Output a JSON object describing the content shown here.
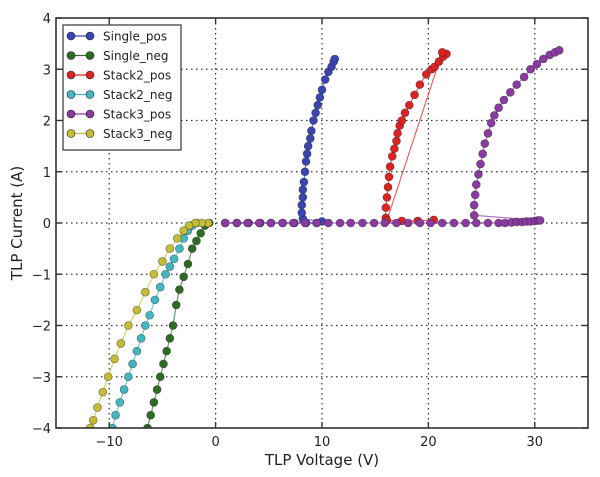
{
  "chart_data": {
    "type": "line",
    "title": "",
    "xlabel": "TLP Voltage (V)",
    "ylabel": "TLP Current (A)",
    "xlim": [
      -15,
      35
    ],
    "ylim": [
      -4,
      4
    ],
    "xticks": [
      -10,
      0,
      10,
      20,
      30
    ],
    "xtick_labels": [
      "−10",
      "0",
      "10",
      "20",
      "30"
    ],
    "yticks": [
      -4,
      -3,
      -2,
      -1,
      0,
      1,
      2,
      3,
      4
    ],
    "ytick_labels": [
      "−4",
      "−3",
      "−2",
      "−1",
      "0",
      "1",
      "2",
      "3",
      "4"
    ],
    "grid": true,
    "legend_position": "top-left",
    "series": [
      {
        "name": "Single_pos",
        "color": "#3a45b0",
        "x": [
          0.9,
          2.0,
          3.1,
          4.2,
          5.2,
          6.3,
          7.4,
          8.5,
          9.5,
          10.0,
          8.2,
          8.1,
          8.1,
          8.2,
          8.2,
          8.3,
          8.4,
          8.5,
          8.6,
          8.7,
          8.9,
          9.0,
          9.2,
          9.4,
          9.6,
          9.8,
          10.0,
          10.3,
          10.6,
          10.9,
          11.1,
          11.2
        ],
        "y": [
          0.0,
          0.0,
          0.0,
          0.0,
          0.0,
          0.0,
          0.0,
          0.0,
          0.0,
          0.03,
          0.08,
          0.2,
          0.35,
          0.5,
          0.65,
          0.8,
          1.0,
          1.2,
          1.35,
          1.5,
          1.65,
          1.8,
          2.0,
          2.15,
          2.3,
          2.45,
          2.6,
          2.8,
          2.95,
          3.05,
          3.15,
          3.2
        ]
      },
      {
        "name": "Single_neg",
        "color": "#2e6b25",
        "x": [
          -0.6,
          -1.0,
          -1.4,
          -1.8,
          -2.2,
          -2.6,
          -3.0,
          -3.4,
          -3.7,
          -4.0,
          -4.3,
          -4.6,
          -4.9,
          -5.2,
          -5.5,
          -5.8,
          -6.1,
          -6.4
        ],
        "y": [
          0.0,
          -0.05,
          -0.2,
          -0.35,
          -0.5,
          -0.8,
          -1.05,
          -1.3,
          -1.6,
          -2.0,
          -2.25,
          -2.5,
          -2.75,
          -3.0,
          -3.25,
          -3.5,
          -3.75,
          -4.0
        ]
      },
      {
        "name": "Stack2_pos",
        "color": "#dd2222",
        "x": [
          16.0,
          16.0,
          16.1,
          16.2,
          16.3,
          16.4,
          16.6,
          16.8,
          17.0,
          17.1,
          17.3,
          17.5,
          17.8,
          18.2,
          18.7,
          19.2,
          19.8,
          20.3,
          20.6,
          21.0,
          21.4,
          21.7,
          21.3,
          16.1,
          17.5,
          19.0,
          20.5
        ],
        "y": [
          0.1,
          0.3,
          0.5,
          0.7,
          0.9,
          1.1,
          1.3,
          1.45,
          1.6,
          1.75,
          1.9,
          2.0,
          2.15,
          2.3,
          2.5,
          2.7,
          2.9,
          3.0,
          3.05,
          3.15,
          3.25,
          3.3,
          3.33,
          0.05,
          0.04,
          0.04,
          0.06
        ]
      },
      {
        "name": "Stack2_neg",
        "color": "#45b5c2",
        "x": [
          -1.8,
          -2.2,
          -2.6,
          -3.0,
          -3.4,
          -3.9,
          -4.3,
          -4.7,
          -5.2,
          -5.7,
          -6.2,
          -6.6,
          -7.0,
          -7.4,
          -7.8,
          -8.2,
          -8.6,
          -9.0,
          -9.4,
          -9.7
        ],
        "y": [
          0.0,
          -0.05,
          -0.15,
          -0.3,
          -0.5,
          -0.7,
          -0.85,
          -1.0,
          -1.25,
          -1.5,
          -1.8,
          -2.0,
          -2.25,
          -2.5,
          -2.75,
          -3.0,
          -3.25,
          -3.5,
          -3.75,
          -4.0
        ]
      },
      {
        "name": "Stack3_pos",
        "color": "#8a3aa0",
        "x": [
          0.9,
          2.0,
          3.0,
          4.1,
          5.2,
          6.3,
          7.3,
          8.4,
          9.5,
          10.6,
          11.7,
          12.7,
          13.8,
          14.9,
          15.9,
          17.0,
          18.1,
          19.2,
          20.2,
          21.3,
          22.4,
          23.5,
          24.5,
          25.6,
          26.6,
          27.2,
          27.8,
          28.3,
          28.8,
          29.2,
          29.6,
          30.0,
          30.3,
          30.5,
          24.3,
          24.3,
          24.4,
          24.5,
          24.7,
          24.9,
          25.1,
          25.3,
          25.6,
          25.9,
          26.2,
          26.6,
          27.1,
          27.7,
          28.3,
          29.0,
          29.6,
          30.2,
          30.8,
          31.4,
          31.9,
          32.3
        ],
        "y": [
          0.0,
          0.0,
          0.0,
          0.0,
          0.0,
          0.0,
          0.0,
          0.0,
          0.0,
          0.0,
          0.0,
          0.0,
          0.0,
          0.0,
          0.0,
          0.0,
          0.0,
          0.0,
          0.0,
          0.0,
          0.0,
          0.0,
          0.0,
          0.0,
          0.0,
          0.0,
          0.01,
          0.02,
          0.02,
          0.03,
          0.03,
          0.04,
          0.05,
          0.05,
          0.15,
          0.35,
          0.55,
          0.75,
          0.95,
          1.15,
          1.35,
          1.55,
          1.75,
          1.95,
          2.1,
          2.25,
          2.4,
          2.55,
          2.7,
          2.85,
          3.0,
          3.1,
          3.2,
          3.28,
          3.33,
          3.37
        ]
      },
      {
        "name": "Stack3_neg",
        "color": "#c2bd35",
        "x": [
          -0.7,
          -1.3,
          -1.9,
          -2.5,
          -3.0,
          -3.6,
          -4.3,
          -5.0,
          -5.8,
          -6.6,
          -7.4,
          -8.2,
          -8.9,
          -9.5,
          -10.1,
          -10.6,
          -11.1,
          -11.5,
          -11.8
        ],
        "y": [
          0.0,
          0.0,
          0.0,
          -0.05,
          -0.15,
          -0.3,
          -0.5,
          -0.75,
          -1.0,
          -1.35,
          -1.7,
          -2.0,
          -2.35,
          -2.65,
          -3.0,
          -3.3,
          -3.6,
          -3.85,
          -4.0
        ]
      }
    ]
  }
}
